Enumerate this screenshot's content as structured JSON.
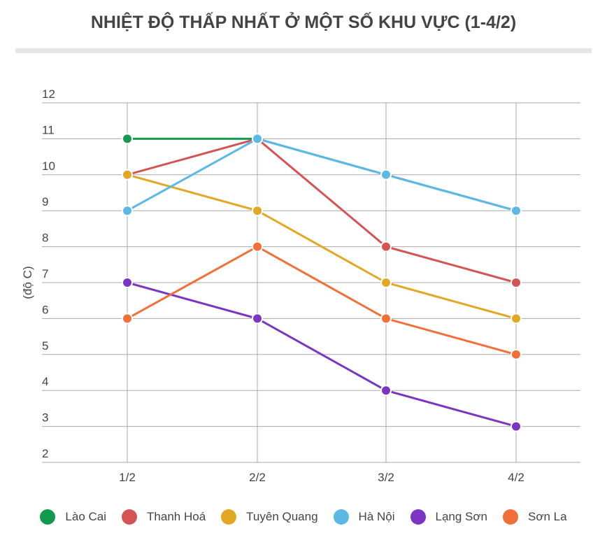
{
  "chart_data": {
    "type": "line",
    "title": "NHIỆT ĐỘ THẤP NHẤT Ở MỘT SỐ KHU VỰC (1-4/2)",
    "ylabel": "(độ C)",
    "xlabel": "",
    "categories": [
      "1/2",
      "2/2",
      "3/2",
      "4/2"
    ],
    "ylim": [
      2,
      12
    ],
    "yticks": [
      2,
      3,
      4,
      5,
      6,
      7,
      8,
      9,
      10,
      11,
      12
    ],
    "grid": true,
    "legend_position": "bottom",
    "series": [
      {
        "name": "Lào Cai",
        "color": "#139a4f",
        "values": [
          11,
          11,
          10,
          9
        ]
      },
      {
        "name": "Thanh Hoá",
        "color": "#d45454",
        "values": [
          10,
          11,
          8,
          7
        ]
      },
      {
        "name": "Tuyên Quang",
        "color": "#e2a824",
        "values": [
          10,
          9,
          7,
          6
        ]
      },
      {
        "name": "Hà Nội",
        "color": "#5cb8e4",
        "values": [
          9,
          11,
          10,
          9
        ]
      },
      {
        "name": "Lạng Sơn",
        "color": "#7b35c2",
        "values": [
          7,
          6,
          4,
          3
        ]
      },
      {
        "name": "Sơn La",
        "color": "#f27038",
        "values": [
          6,
          8,
          6,
          5
        ]
      }
    ]
  }
}
